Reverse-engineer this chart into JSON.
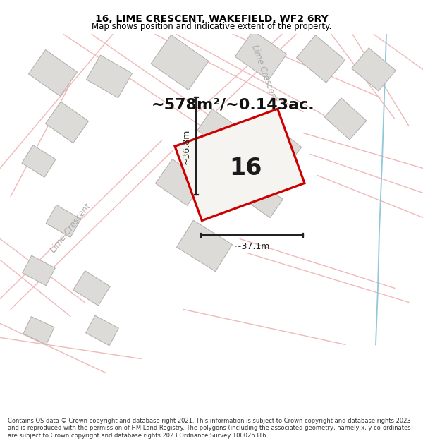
{
  "title": "16, LIME CRESCENT, WAKEFIELD, WF2 6RY",
  "subtitle": "Map shows position and indicative extent of the property.",
  "area_label": "~578m²/~0.143ac.",
  "property_number": "16",
  "dim_horizontal": "~37.1m",
  "dim_vertical": "~36.8m",
  "footer": "Contains OS data © Crown copyright and database right 2021. This information is subject to Crown copyright and database rights 2023 and is reproduced with the permission of HM Land Registry. The polygons (including the associated geometry, namely x, y co-ordinates) are subject to Crown copyright and database rights 2023 Ordnance Survey 100026316.",
  "map_bg": "#f0efec",
  "property_fill": "#f0efec",
  "property_edge": "#cc0000",
  "building_fill": "#dddbd8",
  "building_edge": "#b0aeab",
  "road_line_color": "#f0b8b8",
  "road_line_color2": "#e09090",
  "blue_line_color": "#90c8d8",
  "dim_line_color": "#222222",
  "street_label_color": "#aaaaaa",
  "title_fontsize": 10,
  "subtitle_fontsize": 8.5
}
